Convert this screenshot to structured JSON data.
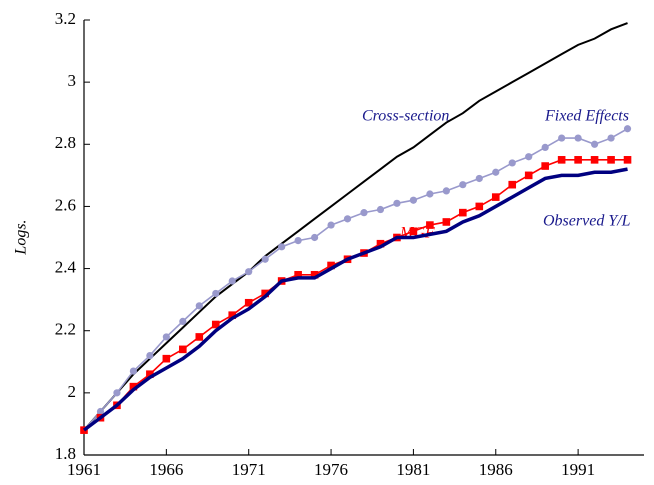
{
  "chart_data": {
    "type": "line",
    "y_label": "Logs.",
    "x": [
      1961,
      1962,
      1963,
      1964,
      1965,
      1966,
      1967,
      1968,
      1969,
      1970,
      1971,
      1972,
      1973,
      1974,
      1975,
      1976,
      1977,
      1978,
      1979,
      1980,
      1981,
      1982,
      1983,
      1984,
      1985,
      1986,
      1987,
      1988,
      1989,
      1990,
      1991,
      1992,
      1993,
      1994
    ],
    "series": [
      {
        "name": "Cross-section",
        "color": "#000000",
        "marker": "none",
        "values": [
          1.88,
          1.94,
          2.0,
          2.06,
          2.11,
          2.16,
          2.21,
          2.26,
          2.31,
          2.35,
          2.39,
          2.44,
          2.48,
          2.52,
          2.56,
          2.6,
          2.64,
          2.68,
          2.72,
          2.76,
          2.79,
          2.83,
          2.87,
          2.9,
          2.94,
          2.97,
          3.0,
          3.03,
          3.06,
          3.09,
          3.12,
          3.14,
          3.17,
          3.19
        ]
      },
      {
        "name": "Fixed Effects",
        "color": "#9999cc",
        "marker": "circle",
        "values": [
          1.88,
          1.94,
          2.0,
          2.07,
          2.12,
          2.18,
          2.23,
          2.28,
          2.32,
          2.36,
          2.39,
          2.43,
          2.47,
          2.49,
          2.5,
          2.54,
          2.56,
          2.58,
          2.59,
          2.61,
          2.62,
          2.64,
          2.65,
          2.67,
          2.69,
          2.71,
          2.74,
          2.76,
          2.79,
          2.82,
          2.82,
          2.8,
          2.82,
          2.85
        ]
      },
      {
        "name": "MGF",
        "color": "#ff0000",
        "marker": "square",
        "values": [
          1.88,
          1.92,
          1.96,
          2.02,
          2.06,
          2.11,
          2.14,
          2.18,
          2.22,
          2.25,
          2.29,
          2.32,
          2.36,
          2.38,
          2.38,
          2.41,
          2.43,
          2.45,
          2.48,
          2.5,
          2.52,
          2.54,
          2.55,
          2.58,
          2.6,
          2.63,
          2.67,
          2.7,
          2.73,
          2.75,
          2.75,
          2.75,
          2.75,
          2.75
        ]
      },
      {
        "name": "Observed Y/L",
        "color": "#000080",
        "marker": "none",
        "values": [
          1.88,
          1.92,
          1.96,
          2.01,
          2.05,
          2.08,
          2.11,
          2.15,
          2.2,
          2.24,
          2.27,
          2.31,
          2.36,
          2.37,
          2.37,
          2.4,
          2.43,
          2.45,
          2.47,
          2.5,
          2.5,
          2.51,
          2.52,
          2.55,
          2.57,
          2.6,
          2.63,
          2.66,
          2.69,
          2.7,
          2.7,
          2.71,
          2.71,
          2.72
        ]
      }
    ],
    "xlim": [
      1961,
      1995
    ],
    "xticks": [
      1961,
      1966,
      1971,
      1976,
      1981,
      1986,
      1991
    ],
    "ylim": [
      1.8,
      3.2
    ],
    "yticks": [
      1.8,
      2,
      2.2,
      2.4,
      2.6,
      2.8,
      3,
      3.2
    ],
    "grid": false
  }
}
